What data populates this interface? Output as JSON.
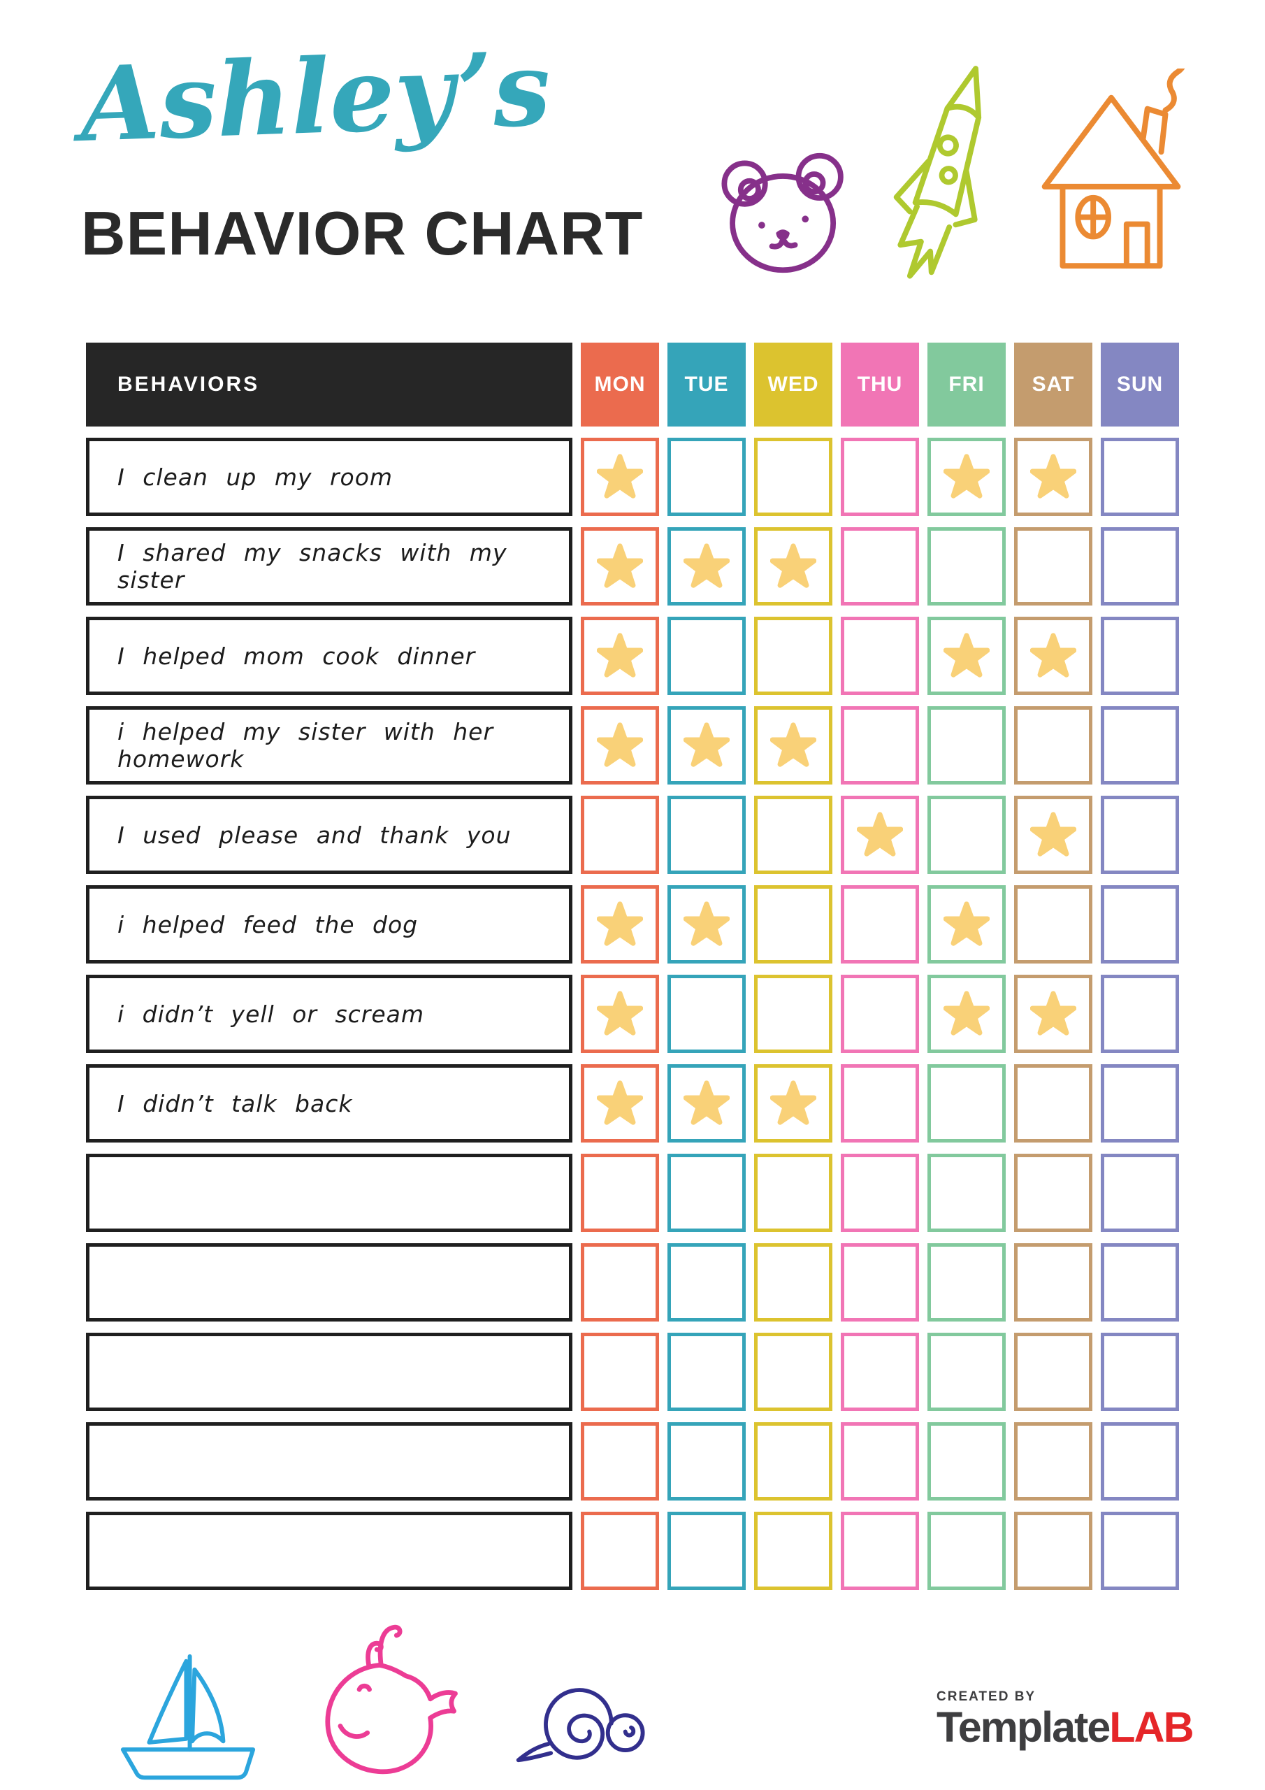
{
  "title": {
    "name": "Ashley’s",
    "name_color": "#35A7BA",
    "subtitle": "BEHAVIOR CHART",
    "subtitle_color": "#2A2A2A"
  },
  "top_doodles": {
    "bear_color": "#86308A",
    "rocket_color": "#AFC92F",
    "house_color": "#EB8A33"
  },
  "table": {
    "behaviors_label": "BEHAVIORS",
    "header_bg": "#262626",
    "header_text_color": "#FFFFFF",
    "label_border_color": "#1F1F1F",
    "star_color": "#F9D178",
    "days": [
      {
        "label": "MON",
        "color": "#EB6B4E"
      },
      {
        "label": "TUE",
        "color": "#35A4B9"
      },
      {
        "label": "WED",
        "color": "#DCC32F"
      },
      {
        "label": "THU",
        "color": "#F175B5"
      },
      {
        "label": "FRI",
        "color": "#82C99D"
      },
      {
        "label": "SAT",
        "color": "#C49C6E"
      },
      {
        "label": "SUN",
        "color": "#8487C2"
      }
    ],
    "rows": [
      {
        "behavior": "I clean up my room",
        "stars": [
          1,
          0,
          0,
          0,
          1,
          1,
          0
        ]
      },
      {
        "behavior": "I shared my snacks with my sister",
        "stars": [
          1,
          1,
          1,
          0,
          0,
          0,
          0
        ]
      },
      {
        "behavior": "I helped mom cook dinner",
        "stars": [
          1,
          0,
          0,
          0,
          1,
          1,
          0
        ]
      },
      {
        "behavior": "i helped my sister with her homework",
        "stars": [
          1,
          1,
          1,
          0,
          0,
          0,
          0
        ]
      },
      {
        "behavior": "I used please and thank you",
        "stars": [
          0,
          0,
          0,
          1,
          0,
          1,
          0
        ]
      },
      {
        "behavior": "i helped feed the dog",
        "stars": [
          1,
          1,
          0,
          0,
          1,
          0,
          0
        ]
      },
      {
        "behavior": "i didn’t yell or scream",
        "stars": [
          1,
          0,
          0,
          0,
          1,
          1,
          0
        ]
      },
      {
        "behavior": "I didn’t talk back",
        "stars": [
          1,
          1,
          1,
          0,
          0,
          0,
          0
        ]
      },
      {
        "behavior": "",
        "stars": [
          0,
          0,
          0,
          0,
          0,
          0,
          0
        ]
      },
      {
        "behavior": "",
        "stars": [
          0,
          0,
          0,
          0,
          0,
          0,
          0
        ]
      },
      {
        "behavior": "",
        "stars": [
          0,
          0,
          0,
          0,
          0,
          0,
          0
        ]
      },
      {
        "behavior": "",
        "stars": [
          0,
          0,
          0,
          0,
          0,
          0,
          0
        ]
      },
      {
        "behavior": "",
        "stars": [
          0,
          0,
          0,
          0,
          0,
          0,
          0
        ]
      }
    ]
  },
  "bottom_doodles": {
    "sailboat_color": "#2BA5DD",
    "whale_color": "#EC3C95",
    "snail_color": "#322F8D"
  },
  "footer_logo": {
    "created_by": "CREATED BY",
    "created_by_color": "#3E3E40",
    "brand_prefix": "Template",
    "brand_prefix_color": "#3E3E40",
    "brand_suffix": "LAB",
    "brand_suffix_color": "#E52629"
  }
}
